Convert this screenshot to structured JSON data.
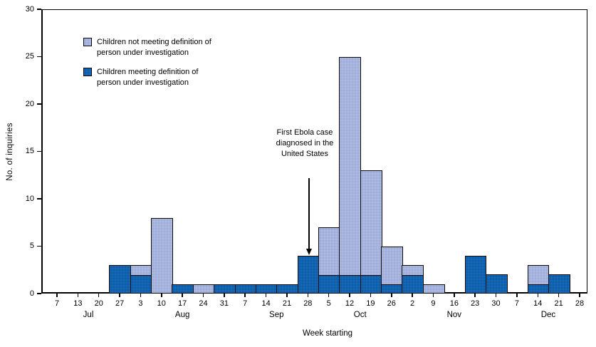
{
  "y_axis": {
    "ticks": [
      "0",
      "5",
      "10",
      "15",
      "20",
      "25",
      "30"
    ],
    "max": 30
  },
  "legend": [
    {
      "label": "Children not meeting definition of\nperson under investigation",
      "color": "#a7b4dd"
    },
    {
      "label": "Children meeting definition of\nperson under investigation",
      "color": "#0f63b0"
    }
  ],
  "annotation": {
    "text": "First Ebola case\ndiagnosed in the\nUnited States",
    "target_week": "Sep 28"
  },
  "chart_data": {
    "type": "bar",
    "stacked": true,
    "title": "",
    "xlabel": "Week starting",
    "ylabel": "No. of inquiries",
    "ylim": [
      0,
      30
    ],
    "yticks": [
      0,
      5,
      10,
      15,
      20,
      25,
      30
    ],
    "grid": false,
    "legend_position": "top-left-inside",
    "categories": [
      "Jul 7",
      "Jul 13",
      "Jul 20",
      "Jul 27",
      "Aug 3",
      "Aug 10",
      "Aug 17",
      "Aug 24",
      "Aug 31",
      "Sep 7",
      "Sep 14",
      "Sep 21",
      "Sep 28",
      "Oct 5",
      "Oct 12",
      "Oct 19",
      "Oct 26",
      "Nov 2",
      "Nov 9",
      "Nov 16",
      "Nov 23",
      "Nov 30",
      "Dec 7",
      "Dec 14",
      "Dec 21",
      "Dec 28"
    ],
    "x_tick_labels": [
      "7",
      "13",
      "20",
      "27",
      "3",
      "10",
      "17",
      "24",
      "31",
      "7",
      "14",
      "21",
      "28",
      "5",
      "12",
      "19",
      "26",
      "2",
      "9",
      "16",
      "23",
      "30",
      "7",
      "14",
      "21",
      "28"
    ],
    "month_groups": [
      {
        "label": "Jul",
        "count": 4
      },
      {
        "label": "Aug",
        "count": 5
      },
      {
        "label": "Sep",
        "count": 4
      },
      {
        "label": "Oct",
        "count": 4
      },
      {
        "label": "Nov",
        "count": 5
      },
      {
        "label": "Dec",
        "count": 4
      }
    ],
    "series": [
      {
        "name": "Children meeting definition of person under investigation",
        "color": "#0f63b0",
        "values": [
          0,
          0,
          0,
          3,
          2,
          0,
          1,
          0,
          1,
          1,
          1,
          1,
          4,
          2,
          2,
          2,
          1,
          2,
          0,
          0,
          4,
          2,
          0,
          1,
          2,
          0
        ]
      },
      {
        "name": "Children not meeting definition of person under investigation",
        "color": "#a7b4dd",
        "values": [
          0,
          0,
          0,
          0,
          1,
          8,
          0,
          1,
          0,
          0,
          0,
          0,
          0,
          5,
          23,
          11,
          4,
          1,
          1,
          0,
          0,
          0,
          0,
          2,
          0,
          0
        ]
      }
    ],
    "totals": [
      0,
      0,
      0,
      3,
      3,
      8,
      1,
      1,
      1,
      1,
      1,
      1,
      4,
      7,
      25,
      13,
      5,
      3,
      1,
      0,
      4,
      2,
      0,
      3,
      2,
      0
    ]
  }
}
